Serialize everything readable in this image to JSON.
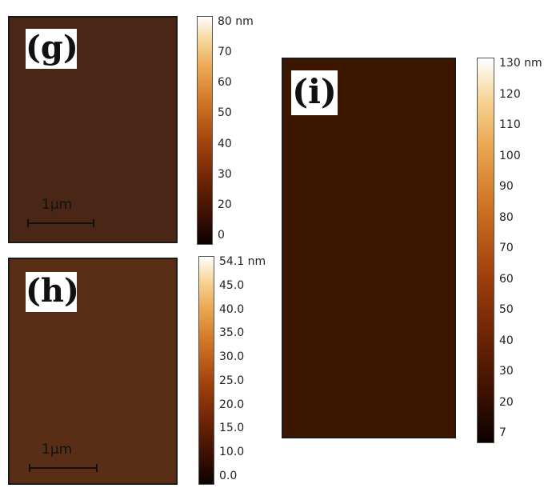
{
  "panels": [
    {
      "label": "(g)",
      "scale_bar": "1μm"
    },
    {
      "label": "(h)",
      "scale_bar": "1μm"
    },
    {
      "label": "(i)"
    }
  ],
  "colorbars": [
    {
      "ticks": [
        "80 nm",
        "70",
        "60",
        "50",
        "40",
        "30",
        "20",
        "0"
      ]
    },
    {
      "ticks": [
        "54.1 nm",
        "45.0",
        "40.0",
        "35.0",
        "30.0",
        "25.0",
        "20.0",
        "15.0",
        "10.0",
        "0.0"
      ]
    },
    {
      "ticks": [
        "130 nm",
        "120",
        "110",
        "100",
        "90",
        "80",
        "70",
        "60",
        "50",
        "40",
        "30",
        "20",
        "7"
      ]
    }
  ],
  "colors": {
    "dark": "#1a0502",
    "mid": "#9c3d0c",
    "light": "#f6d9a3"
  }
}
